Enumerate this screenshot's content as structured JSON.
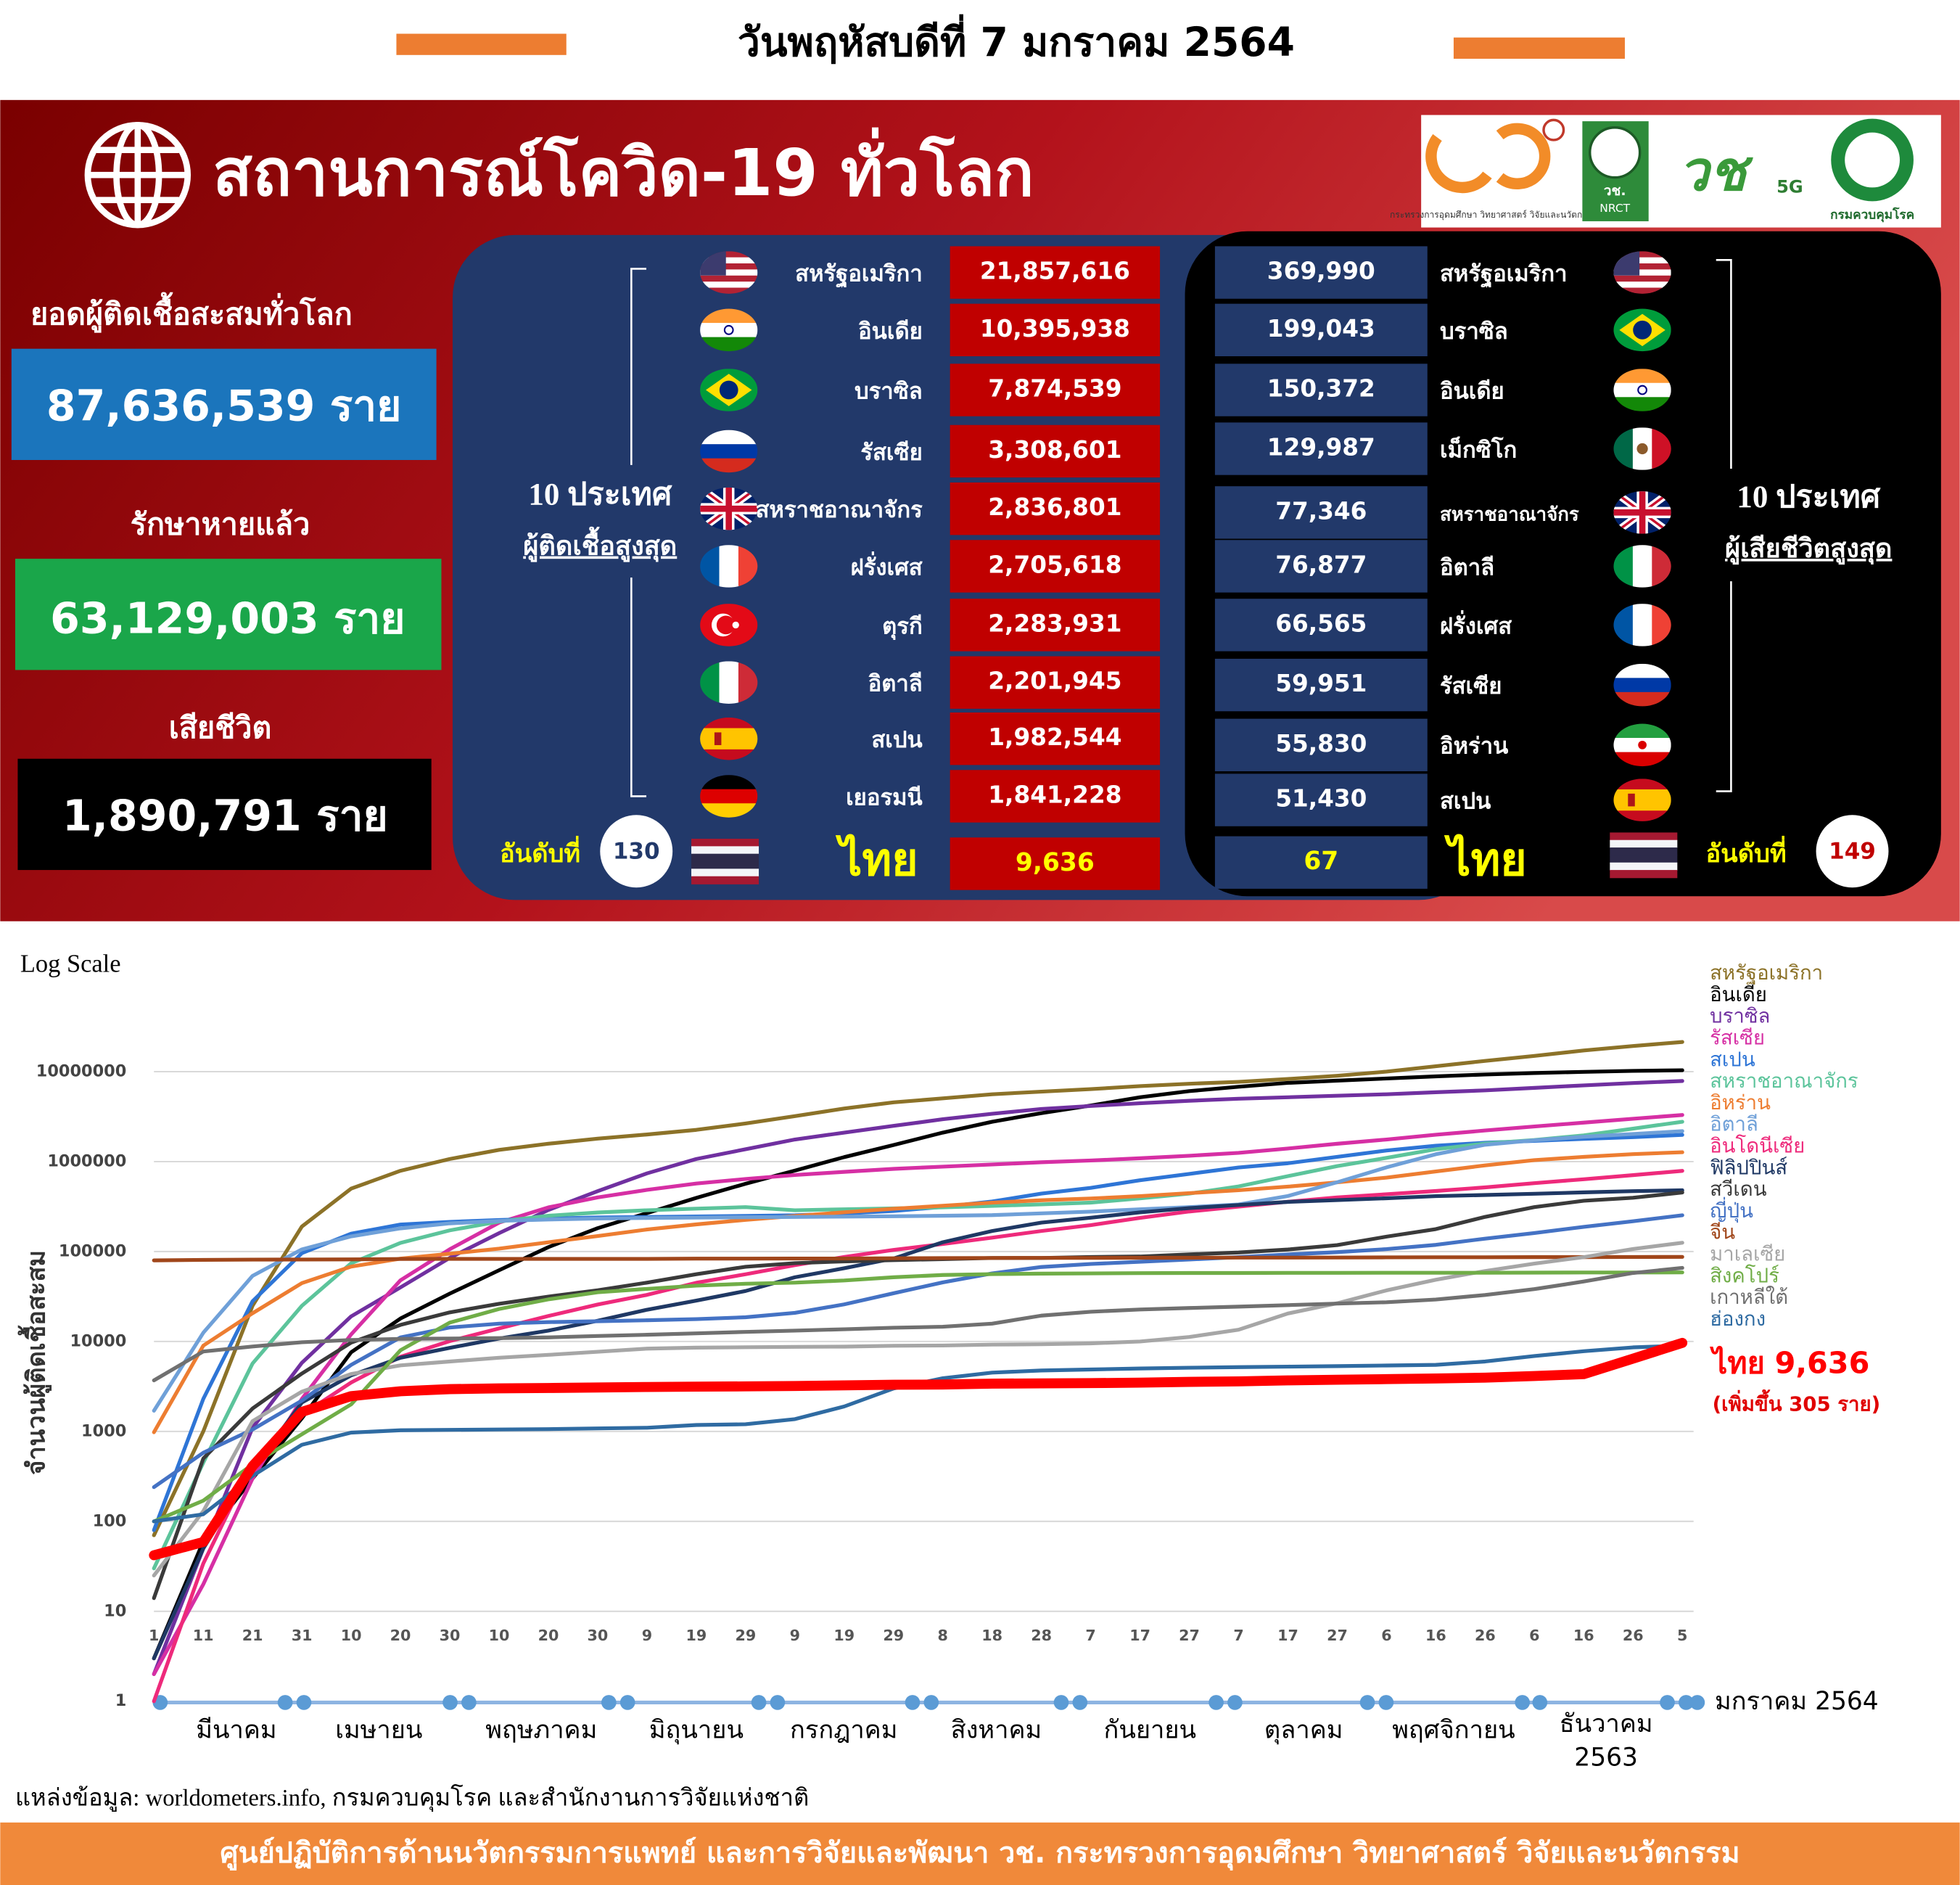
{
  "header": {
    "date": "วันพฤหัสบดีที่ 7 มกราคม 2564"
  },
  "panel": {
    "title": "สถานการณ์โควิด-19 ทั่วโลก"
  },
  "logos": {
    "mhesi": "กระทรวงการอุดมศึกษา วิทยาศาสตร์ วิจัยและนวัตกรรม",
    "nrct_short": "วช.",
    "nrct": "NRCT",
    "vch": "วช",
    "g5": "5G",
    "ddc": "กรมควบคุมโรค"
  },
  "global": {
    "cases_label": "ยอดผู้ติดเชื้อสะสมทั่วโลก",
    "cases": "87,636,539 ราย",
    "recovered_label": "รักษาหายแล้ว",
    "recovered": "63,129,003 ราย",
    "deaths_label": "เสียชีวิต",
    "deaths": "1,890,791 ราย"
  },
  "top_cases": {
    "heading": "10 ประเทศ",
    "subheading": "ผู้ติดเชื้อสูงสุด",
    "rows": [
      {
        "country": "สหรัฐอเมริกา",
        "value": "21,857,616"
      },
      {
        "country": "อินเดีย",
        "value": "10,395,938"
      },
      {
        "country": "บราซิล",
        "value": "7,874,539"
      },
      {
        "country": "รัสเซีย",
        "value": "3,308,601"
      },
      {
        "country": "สหราชอาณาจักร",
        "value": "2,836,801"
      },
      {
        "country": "ฝรั่งเศส",
        "value": "2,705,618"
      },
      {
        "country": "ตุรกี",
        "value": "2,283,931"
      },
      {
        "country": "อิตาลี",
        "value": "2,201,945"
      },
      {
        "country": "สเปน",
        "value": "1,982,544"
      },
      {
        "country": "เยอรมนี",
        "value": "1,841,228"
      }
    ],
    "thailand": {
      "rank_label": "อันดับที่",
      "rank": "130",
      "country": "ไทย",
      "value": "9,636"
    }
  },
  "top_deaths": {
    "heading": "10 ประเทศ",
    "subheading": "ผู้เสียชีวิตสูงสุด",
    "rows": [
      {
        "country": "สหรัฐอเมริกา",
        "value": "369,990"
      },
      {
        "country": "บราซิล",
        "value": "199,043"
      },
      {
        "country": "อินเดีย",
        "value": "150,372"
      },
      {
        "country": "เม็กซิโก",
        "value": "129,987"
      },
      {
        "country": "สหราชอาณาจักร",
        "value": "77,346"
      },
      {
        "country": "อิตาลี",
        "value": "76,877"
      },
      {
        "country": "ฝรั่งเศส",
        "value": "66,565"
      },
      {
        "country": "รัสเซีย",
        "value": "59,951"
      },
      {
        "country": "อิหร่าน",
        "value": "55,830"
      },
      {
        "country": "สเปน",
        "value": "51,430"
      }
    ],
    "thailand": {
      "rank_label": "อันดับที่",
      "rank": "149",
      "country": "ไทย",
      "value": "67"
    }
  },
  "chart_data": {
    "type": "line",
    "scale_label": "Log Scale",
    "y_label": "จำนวนผู้ติดเชื้อสะสม",
    "log_scale": true,
    "grid": true,
    "ylim": [
      1,
      30000000
    ],
    "yticks": [
      1,
      10,
      100,
      1000,
      10000,
      100000,
      1000000,
      10000000
    ],
    "categories": [
      "1",
      "11",
      "21",
      "31",
      "10",
      "20",
      "30",
      "10",
      "20",
      "30",
      "9",
      "19",
      "29",
      "9",
      "19",
      "29",
      "8",
      "18",
      "28",
      "7",
      "17",
      "27",
      "7",
      "17",
      "27",
      "6",
      "16",
      "26",
      "6",
      "16",
      "26",
      "5"
    ],
    "month_labels": [
      "มีนาคม",
      "เมษายน",
      "พฤษภาคม",
      "มิถุนายน",
      "กรกฎาคม",
      "สิงหาคม",
      "กันยายน",
      "ตุลาคม",
      "พฤศจิกายน",
      "ธันวาคม"
    ],
    "year_label": "2563",
    "end_label": "มกราคม 2564",
    "annotation": "(เพิ่มขึ้น 305 ราย)",
    "series": [
      {
        "name": "สหรัฐอเมริกา",
        "color": "#8c7228",
        "values": [
          70,
          1000,
          25000,
          190000,
          500000,
          790000,
          1070000,
          1350000,
          1580000,
          1800000,
          2000000,
          2250000,
          2650000,
          3200000,
          3900000,
          4550000,
          5050000,
          5600000,
          6000000,
          6400000,
          6900000,
          7350000,
          7700000,
          8300000,
          9000000,
          10000000,
          11500000,
          13200000,
          15000000,
          17200000,
          19300000,
          21400000
        ]
      },
      {
        "name": "อินเดีย",
        "color": "#000000",
        "values": [
          3,
          60,
          300,
          1400,
          7600,
          18000,
          34000,
          62000,
          112000,
          182000,
          267000,
          395000,
          567000,
          794000,
          1120000,
          1530000,
          2100000,
          2770000,
          3460000,
          4200000,
          5200000,
          6070000,
          6800000,
          7500000,
          7950000,
          8400000,
          8870000,
          9300000,
          9650000,
          9930000,
          10200000,
          10380000
        ]
      },
      {
        "name": "บราซิล",
        "color": "#7030a0",
        "values": [
          2,
          50,
          1100,
          5800,
          19000,
          40000,
          85000,
          160000,
          290000,
          470000,
          740000,
          1070000,
          1370000,
          1760000,
          2100000,
          2500000,
          2960000,
          3400000,
          3850000,
          4150000,
          4460000,
          4750000,
          5000000,
          5200000,
          5400000,
          5600000,
          5900000,
          6200000,
          6600000,
          7050000,
          7470000,
          7870000
        ]
      },
      {
        "name": "รัสเซีย",
        "color": "#d62fa4",
        "values": [
          2,
          20,
          300,
          2300,
          12000,
          48000,
          106000,
          210000,
          310000,
          400000,
          485000,
          570000,
          640000,
          710000,
          770000,
          830000,
          880000,
          930000,
          985000,
          1030000,
          1090000,
          1160000,
          1250000,
          1400000,
          1580000,
          1760000,
          1990000,
          2220000,
          2460000,
          2710000,
          3000000,
          3300000
        ]
      },
      {
        "name": "สเปน",
        "color": "#2e75d6",
        "values": [
          80,
          2300,
          28000,
          96000,
          158000,
          200000,
          214000,
          224000,
          233000,
          239000,
          242000,
          245000,
          249000,
          253000,
          265000,
          282000,
          314000,
          360000,
          440000,
          510000,
          620000,
          730000,
          860000,
          960000,
          1130000,
          1330000,
          1500000,
          1620000,
          1700000,
          1790000,
          1870000,
          1980000
        ]
      },
      {
        "name": "สหราชอาณาจักร",
        "color": "#5cc49b",
        "values": [
          30,
          450,
          5700,
          25000,
          74000,
          125000,
          172000,
          216000,
          250000,
          272000,
          288000,
          300000,
          312000,
          288000,
          295000,
          302000,
          310000,
          322000,
          335000,
          350000,
          390000,
          440000,
          530000,
          690000,
          890000,
          1100000,
          1370000,
          1590000,
          1740000,
          1960000,
          2330000,
          2770000
        ]
      },
      {
        "name": "อิหร่าน",
        "color": "#ed7d31",
        "values": [
          980,
          9000,
          20600,
          44600,
          68000,
          83500,
          94600,
          107600,
          126900,
          148900,
          175900,
          200300,
          225200,
          248400,
          273800,
          298900,
          322600,
          350300,
          371800,
          388800,
          413100,
          446400,
          479800,
          526500,
          587900,
          663800,
          775100,
          908000,
          1040000,
          1130000,
          1210000,
          1270000
        ]
      },
      {
        "name": "อิตาลี",
        "color": "#6fa0d8",
        "values": [
          1700,
          12500,
          53600,
          105800,
          147600,
          181200,
          205500,
          219100,
          227400,
          232700,
          235700,
          238200,
          240400,
          242400,
          244400,
          247200,
          250100,
          254200,
          265400,
          277600,
          294900,
          311400,
          333900,
          414200,
          588800,
          862700,
          1205900,
          1538200,
          1728800,
          1888100,
          2028400,
          2181600
        ]
      },
      {
        "name": "อินโดนีเซีย",
        "color": "#ee2a7b",
        "values": [
          1,
          34,
          450,
          1530,
          3500,
          6760,
          10100,
          14000,
          19200,
          25800,
          33000,
          45000,
          56000,
          70700,
          87000,
          104400,
          121200,
          143000,
          169200,
          196900,
          236500,
          278700,
          315700,
          357800,
          400500,
          433800,
          470600,
          516800,
          575800,
          636200,
          706800,
          788400
        ]
      },
      {
        "name": "ฟิลิปปินส์",
        "color": "#1f3864",
        "values": [
          3,
          50,
          380,
          2100,
          4200,
          6600,
          8500,
          10800,
          13200,
          17000,
          22500,
          28500,
          36400,
          51800,
          65300,
          83700,
          126900,
          169200,
          209500,
          237400,
          272900,
          304200,
          329600,
          356600,
          373100,
          391800,
          413400,
          425900,
          439800,
          454400,
          470100,
          480700
        ]
      },
      {
        "name": "สวีเดน",
        "color": "#3a3a3a",
        "values": [
          14,
          500,
          1800,
          4400,
          9700,
          15300,
          21100,
          26300,
          31500,
          37100,
          45100,
          56000,
          67700,
          74300,
          77700,
          80400,
          82300,
          84900,
          84900,
          86900,
          88200,
          92900,
          97500,
          105400,
          118000,
          146500,
          177400,
          243100,
          312000,
          367100,
          396000,
          453000
        ]
      },
      {
        "name": "ญี่ปุ่น",
        "color": "#4472c4",
        "values": [
          240,
          580,
          1050,
          2200,
          5500,
          11100,
          14300,
          15800,
          16400,
          16800,
          17200,
          17700,
          18600,
          20800,
          25900,
          34400,
          45400,
          57200,
          67300,
          72700,
          76900,
          81700,
          86800,
          92600,
          98400,
          106300,
          118700,
          139400,
          160800,
          187900,
          217300,
          253200
        ]
      },
      {
        "name": "จีน",
        "color": "#a0461a",
        "values": [
          79800,
          80800,
          81300,
          81500,
          81900,
          82700,
          82900,
          82900,
          82900,
          83000,
          83000,
          83300,
          83500,
          83600,
          83700,
          84100,
          84600,
          84900,
          85000,
          85100,
          85200,
          85400,
          85500,
          85700,
          85900,
          86200,
          86400,
          86500,
          86600,
          86800,
          87000,
          87200
        ]
      },
      {
        "name": "มาเลเซีย",
        "color": "#a6a6a6",
        "values": [
          25,
          130,
          1300,
          2770,
          4350,
          5430,
          6000,
          6600,
          7100,
          7700,
          8330,
          8540,
          8640,
          8700,
          8780,
          8960,
          9030,
          9240,
          9310,
          9530,
          10000,
          11200,
          13500,
          20500,
          26600,
          37000,
          48500,
          60800,
          73300,
          86600,
          106700,
          125400
        ]
      },
      {
        "name": "สิงคโปร์",
        "color": "#70ad47",
        "values": [
          100,
          170,
          430,
          930,
          2000,
          8000,
          16200,
          23000,
          29400,
          35300,
          38500,
          41800,
          43900,
          45100,
          47600,
          51800,
          54800,
          56100,
          56800,
          57200,
          57500,
          57700,
          57800,
          57900,
          58000,
          58100,
          58100,
          58200,
          58300,
          58400,
          58500,
          58700
        ]
      },
      {
        "name": "เกาหลีใต้",
        "color": "#707070",
        "values": [
          3700,
          7750,
          8800,
          9800,
          10400,
          10700,
          10800,
          10900,
          11100,
          11500,
          11900,
          12300,
          12800,
          13200,
          13700,
          14200,
          14600,
          15800,
          19400,
          21400,
          22700,
          23600,
          24400,
          25400,
          26400,
          27300,
          29300,
          32900,
          38200,
          46500,
          57700,
          65800
        ]
      },
      {
        "name": "ฮ่องกง",
        "color": "#2f6ba2",
        "values": [
          100,
          120,
          320,
          710,
          970,
          1030,
          1040,
          1050,
          1060,
          1080,
          1100,
          1180,
          1200,
          1370,
          1890,
          3000,
          3900,
          4500,
          4760,
          4880,
          5010,
          5100,
          5180,
          5260,
          5320,
          5400,
          5500,
          6000,
          6900,
          7800,
          8600,
          9000
        ]
      },
      {
        "name": "ไทย",
        "color": "#ff0000",
        "values": [
          42,
          59,
          411,
          1650,
          2470,
          2800,
          2950,
          3010,
          3040,
          3080,
          3120,
          3150,
          3170,
          3200,
          3250,
          3300,
          3330,
          3400,
          3420,
          3440,
          3490,
          3560,
          3600,
          3690,
          3760,
          3820,
          3880,
          3960,
          4130,
          4330,
          6440,
          9636
        ],
        "value_labels": [
          null,
          null,
          null,
          null,
          null,
          null,
          null,
          null,
          null,
          null,
          null,
          null,
          null,
          null,
          null,
          null,
          null,
          null,
          null,
          null,
          null,
          null,
          null,
          null,
          null,
          null,
          null,
          null,
          null,
          null,
          null,
          "9,636"
        ]
      }
    ]
  },
  "footer": {
    "source": "แหล่งข้อมูล: worldometers.info, กรมควบคุมโรค และสำนักงานการวิจัยแห่งชาติ",
    "credit": "ศูนย์ปฏิบัติการด้านนวัตกรรมการแพทย์ และการวิจัยและพัฒนา วช.  กระทรวงการอุดมศึกษา วิทยาศาสตร์ วิจัยและนวัตกรรม"
  }
}
